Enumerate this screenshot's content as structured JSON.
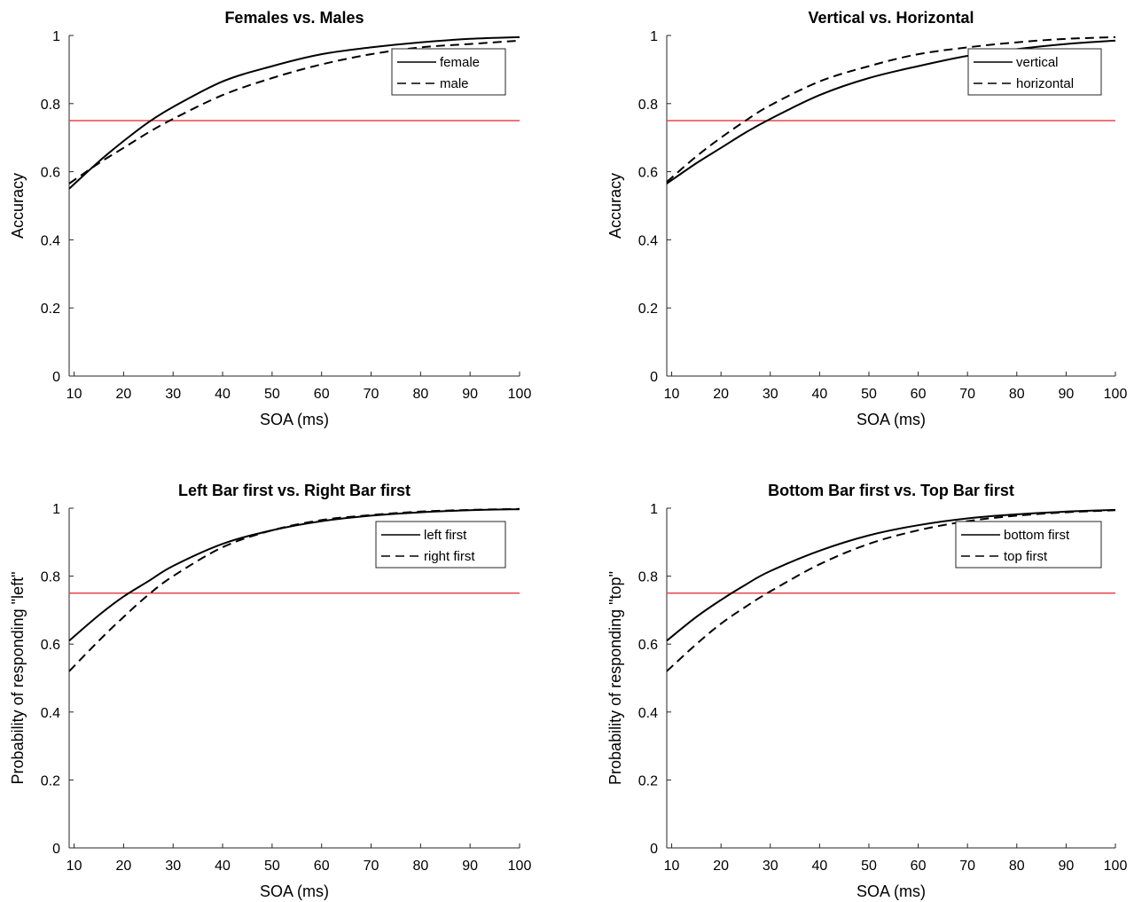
{
  "chart_data": [
    {
      "type": "line",
      "title": "Females vs. Males",
      "xlabel": "SOA (ms)",
      "ylabel": "Accuracy",
      "xlim": [
        9,
        100
      ],
      "ylim": [
        0,
        1
      ],
      "xticks": [
        "10",
        "20",
        "30",
        "40",
        "50",
        "60",
        "70",
        "80",
        "90",
        "100"
      ],
      "yticks": [
        "0",
        "0.2",
        "0.4",
        "0.6",
        "0.8",
        "1"
      ],
      "legend_position": "top-right",
      "threshold": {
        "y": 0.75,
        "color": "#e8474a"
      },
      "series": [
        {
          "name": "female",
          "style": "solid",
          "x": [
            9,
            15,
            20,
            25,
            30,
            40,
            50,
            60,
            70,
            80,
            90,
            100
          ],
          "y": [
            0.55,
            0.63,
            0.69,
            0.745,
            0.79,
            0.865,
            0.91,
            0.945,
            0.965,
            0.98,
            0.99,
            0.995
          ]
        },
        {
          "name": "male",
          "style": "dashed",
          "x": [
            9,
            15,
            20,
            25,
            30,
            40,
            50,
            60,
            70,
            80,
            90,
            100
          ],
          "y": [
            0.565,
            0.625,
            0.67,
            0.715,
            0.755,
            0.825,
            0.875,
            0.915,
            0.945,
            0.965,
            0.975,
            0.985
          ]
        }
      ]
    },
    {
      "type": "line",
      "title": "Vertical vs. Horizontal",
      "xlabel": "SOA (ms)",
      "ylabel": "Accuracy",
      "xlim": [
        9,
        100
      ],
      "ylim": [
        0,
        1
      ],
      "xticks": [
        "10",
        "20",
        "30",
        "40",
        "50",
        "60",
        "70",
        "80",
        "90",
        "100"
      ],
      "yticks": [
        "0",
        "0.2",
        "0.4",
        "0.6",
        "0.8",
        "1"
      ],
      "legend_position": "top-right",
      "threshold": {
        "y": 0.75,
        "color": "#e8474a"
      },
      "series": [
        {
          "name": "vertical",
          "style": "solid",
          "x": [
            9,
            15,
            20,
            25,
            30,
            40,
            50,
            60,
            70,
            80,
            90,
            100
          ],
          "y": [
            0.565,
            0.625,
            0.67,
            0.715,
            0.755,
            0.825,
            0.875,
            0.91,
            0.94,
            0.96,
            0.975,
            0.985
          ]
        },
        {
          "name": "horizontal",
          "style": "dashed",
          "x": [
            9,
            15,
            20,
            25,
            30,
            40,
            50,
            60,
            70,
            80,
            90,
            100
          ],
          "y": [
            0.57,
            0.645,
            0.7,
            0.75,
            0.795,
            0.865,
            0.91,
            0.945,
            0.965,
            0.98,
            0.99,
            0.995
          ]
        }
      ]
    },
    {
      "type": "line",
      "title": "Left Bar first vs. Right Bar first",
      "xlabel": "SOA (ms)",
      "ylabel": "Probability of responding \"left\"",
      "xlim": [
        9,
        100
      ],
      "ylim": [
        0,
        1
      ],
      "xticks": [
        "10",
        "20",
        "30",
        "40",
        "50",
        "60",
        "70",
        "80",
        "90",
        "100"
      ],
      "yticks": [
        "0",
        "0.2",
        "0.4",
        "0.6",
        "0.8",
        "1"
      ],
      "legend_position": "top-right",
      "threshold": {
        "y": 0.75,
        "color": "#e8474a"
      },
      "series": [
        {
          "name": "left first",
          "style": "solid",
          "x": [
            9,
            15,
            20,
            25,
            30,
            40,
            50,
            60,
            70,
            80,
            90,
            100
          ],
          "y": [
            0.61,
            0.685,
            0.74,
            0.785,
            0.83,
            0.895,
            0.935,
            0.962,
            0.978,
            0.988,
            0.994,
            0.997
          ]
        },
        {
          "name": "right first",
          "style": "dashed",
          "x": [
            9,
            15,
            20,
            25,
            30,
            40,
            50,
            60,
            70,
            80,
            90,
            100
          ],
          "y": [
            0.52,
            0.61,
            0.68,
            0.745,
            0.8,
            0.885,
            0.935,
            0.965,
            0.98,
            0.99,
            0.995,
            0.998
          ]
        }
      ]
    },
    {
      "type": "line",
      "title": "Bottom Bar first vs. Top Bar first",
      "xlabel": "SOA (ms)",
      "ylabel": "Probability of responding \"top\"",
      "xlim": [
        9,
        100
      ],
      "ylim": [
        0,
        1
      ],
      "xticks": [
        "10",
        "20",
        "30",
        "40",
        "50",
        "60",
        "70",
        "80",
        "90",
        "100"
      ],
      "yticks": [
        "0",
        "0.2",
        "0.4",
        "0.6",
        "0.8",
        "1"
      ],
      "legend_position": "top-right",
      "threshold": {
        "y": 0.75,
        "color": "#e8474a"
      },
      "series": [
        {
          "name": "bottom first",
          "style": "solid",
          "x": [
            9,
            15,
            20,
            25,
            30,
            40,
            50,
            60,
            70,
            80,
            90,
            100
          ],
          "y": [
            0.61,
            0.68,
            0.73,
            0.775,
            0.815,
            0.875,
            0.92,
            0.95,
            0.97,
            0.982,
            0.99,
            0.995
          ]
        },
        {
          "name": "top first",
          "style": "dashed",
          "x": [
            9,
            15,
            20,
            25,
            30,
            40,
            50,
            60,
            70,
            80,
            90,
            100
          ],
          "y": [
            0.52,
            0.6,
            0.66,
            0.71,
            0.755,
            0.835,
            0.895,
            0.935,
            0.962,
            0.978,
            0.988,
            0.994
          ]
        }
      ]
    }
  ]
}
